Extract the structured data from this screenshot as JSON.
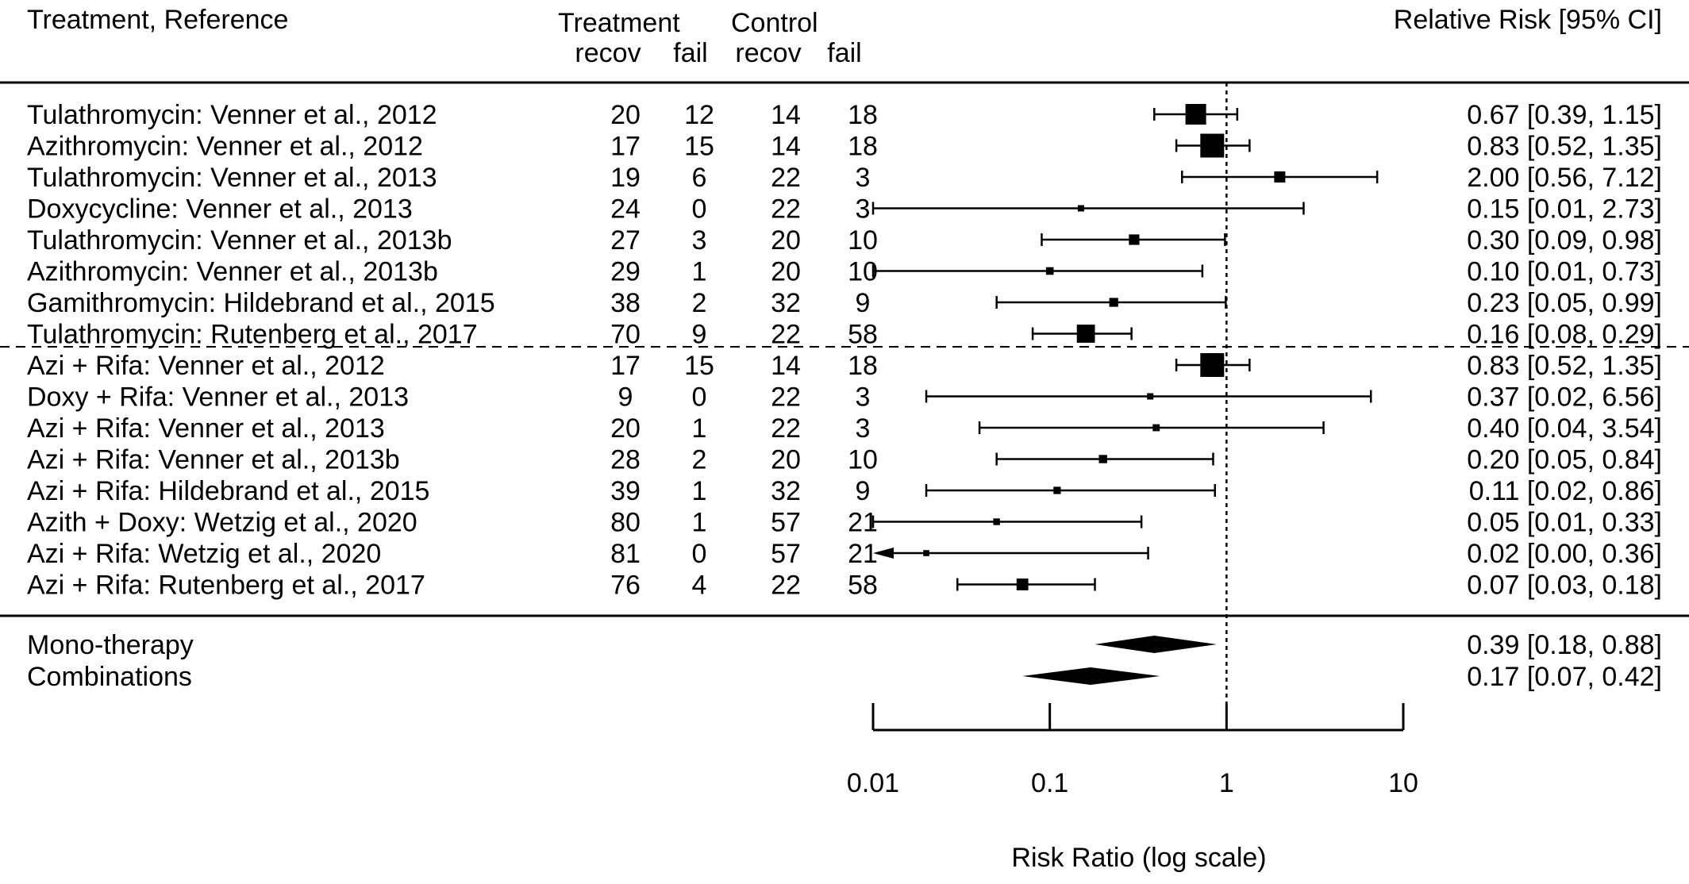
{
  "chart_data": {
    "type": "forest",
    "x_scale": "log",
    "x_label": "Risk Ratio (log scale)",
    "x_ticks": [
      {
        "value": 0.01,
        "label": "0.01"
      },
      {
        "value": 0.1,
        "label": "0.1"
      },
      {
        "value": 1,
        "label": "1"
      },
      {
        "value": 10,
        "label": "10"
      }
    ],
    "reference_line": 1,
    "headers": {
      "study": "Treatment, Reference",
      "treatment_group": "Treatment",
      "control_group": "Control",
      "recov": "recov",
      "fail": "fail",
      "effect": "Relative Risk [95% CI]"
    },
    "groups": [
      {
        "studies": [
          {
            "label": "Tulathromycin: Venner et al., 2012",
            "t_recov": "20",
            "t_fail": "12",
            "c_recov": "14",
            "c_fail": "18",
            "rr": 0.67,
            "lo": 0.39,
            "hi": 1.15,
            "weight": 5,
            "ci_text": "0.67 [0.39, 1.15]"
          },
          {
            "label": "Azithromycin: Venner et al., 2012",
            "t_recov": "17",
            "t_fail": "15",
            "c_recov": "14",
            "c_fail": "18",
            "rr": 0.83,
            "lo": 0.52,
            "hi": 1.35,
            "weight": 6,
            "ci_text": "0.83 [0.52, 1.35]"
          },
          {
            "label": "Tulathromycin: Venner et al., 2013",
            "t_recov": "19",
            "t_fail": "6",
            "c_recov": "22",
            "c_fail": "3",
            "rr": 2.0,
            "lo": 0.56,
            "hi": 7.12,
            "weight": 2,
            "ci_text": "2.00 [0.56, 7.12]"
          },
          {
            "label": "Doxycycline: Venner et al., 2013",
            "t_recov": "24",
            "t_fail": "0",
            "c_recov": "22",
            "c_fail": "3",
            "rr": 0.15,
            "lo": 0.01,
            "hi": 2.73,
            "weight": 0.5,
            "ci_text": "0.15 [0.01, 2.73]"
          },
          {
            "label": "Tulathromycin: Venner et al., 2013b",
            "t_recov": "27",
            "t_fail": "3",
            "c_recov": "20",
            "c_fail": "10",
            "rr": 0.3,
            "lo": 0.09,
            "hi": 0.98,
            "weight": 1.8,
            "ci_text": "0.30 [0.09, 0.98]"
          },
          {
            "label": "Azithromycin: Venner et al., 2013b",
            "t_recov": "29",
            "t_fail": "1",
            "c_recov": "20",
            "c_fail": "10",
            "rr": 0.1,
            "lo": 0.01,
            "hi": 0.73,
            "weight": 0.9,
            "ci_text": "0.10 [0.01, 0.73]"
          },
          {
            "label": "Gamithromycin: Hildebrand et al., 2015",
            "t_recov": "38",
            "t_fail": "2",
            "c_recov": "32",
            "c_fail": "9",
            "rr": 0.23,
            "lo": 0.05,
            "hi": 0.99,
            "weight": 1.3,
            "ci_text": "0.23 [0.05, 0.99]"
          },
          {
            "label": "Tulathromycin: Rutenberg et al., 2017",
            "t_recov": "70",
            "t_fail": "9",
            "c_recov": "22",
            "c_fail": "58",
            "rr": 0.16,
            "lo": 0.08,
            "hi": 0.29,
            "weight": 4.2,
            "ci_text": "0.16 [0.08, 0.29]"
          }
        ]
      },
      {
        "studies": [
          {
            "label": "Azi + Rifa: Venner et al., 2012",
            "t_recov": "17",
            "t_fail": "15",
            "c_recov": "14",
            "c_fail": "18",
            "rr": 0.83,
            "lo": 0.52,
            "hi": 1.35,
            "weight": 6,
            "ci_text": "0.83 [0.52, 1.35]"
          },
          {
            "label": "Doxy + Rifa: Venner et al., 2013",
            "t_recov": "9",
            "t_fail": "0",
            "c_recov": "22",
            "c_fail": "3",
            "rr": 0.37,
            "lo": 0.02,
            "hi": 6.56,
            "weight": 0.5,
            "ci_text": "0.37 [0.02, 6.56]"
          },
          {
            "label": "Azi + Rifa: Venner et al., 2013",
            "t_recov": "20",
            "t_fail": "1",
            "c_recov": "22",
            "c_fail": "3",
            "rr": 0.4,
            "lo": 0.04,
            "hi": 3.54,
            "weight": 0.7,
            "ci_text": "0.40 [0.04, 3.54]"
          },
          {
            "label": "Azi + Rifa: Venner et al., 2013b",
            "t_recov": "28",
            "t_fail": "2",
            "c_recov": "20",
            "c_fail": "10",
            "rr": 0.2,
            "lo": 0.05,
            "hi": 0.84,
            "weight": 1.1,
            "ci_text": "0.20 [0.05, 0.84]"
          },
          {
            "label": "Azi + Rifa: Hildebrand et al., 2015",
            "t_recov": "39",
            "t_fail": "1",
            "c_recov": "32",
            "c_fail": "9",
            "rr": 0.11,
            "lo": 0.02,
            "hi": 0.86,
            "weight": 0.8,
            "ci_text": "0.11 [0.02, 0.86]"
          },
          {
            "label": "Azith + Doxy: Wetzig et al., 2020",
            "t_recov": "80",
            "t_fail": "1",
            "c_recov": "57",
            "c_fail": "21",
            "rr": 0.05,
            "lo": 0.01,
            "hi": 0.33,
            "weight": 0.6,
            "ci_text": "0.05 [0.01, 0.33]"
          },
          {
            "label": "Azi + Rifa: Wetzig et al., 2020",
            "t_recov": "81",
            "t_fail": "0",
            "c_recov": "57",
            "c_fail": "21",
            "rr": 0.02,
            "lo": 0.0,
            "hi": 0.36,
            "weight": 0.4,
            "ci_text": "0.02 [0.00, 0.36]"
          },
          {
            "label": "Azi + Rifa: Rutenberg et al., 2017",
            "t_recov": "76",
            "t_fail": "4",
            "c_recov": "22",
            "c_fail": "58",
            "rr": 0.07,
            "lo": 0.03,
            "hi": 0.18,
            "weight": 2.2,
            "ci_text": "0.07 [0.03, 0.18]"
          }
        ]
      }
    ],
    "summaries": [
      {
        "label": "Mono-therapy",
        "rr": 0.39,
        "lo": 0.18,
        "hi": 0.88,
        "ci_text": "0.39 [0.18, 0.88]"
      },
      {
        "label": "Combinations",
        "rr": 0.17,
        "lo": 0.07,
        "hi": 0.42,
        "ci_text": "0.17 [0.07, 0.42]"
      }
    ]
  }
}
